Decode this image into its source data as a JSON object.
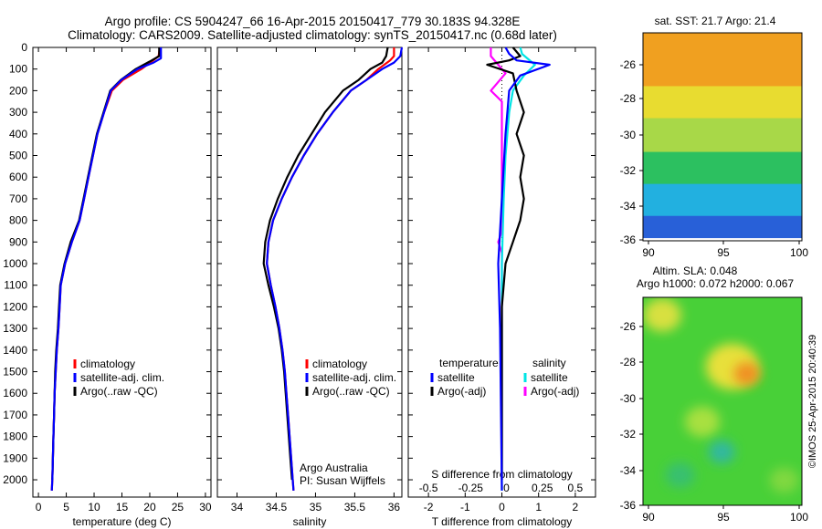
{
  "header": {
    "title1": "Argo profile: CS 5904247_66 16-Apr-2015 20150417_779 30.183S 94.328E",
    "title2": "Climatology: CARS2009. Satellite-adjusted climatology: synTS_20150417.nc (0.68d later)"
  },
  "depth_ticks": [
    "0",
    "100",
    "200",
    "300",
    "400",
    "500",
    "600",
    "700",
    "800",
    "900",
    "1000",
    "1100",
    "1200",
    "1300",
    "1400",
    "1500",
    "1600",
    "1700",
    "1800",
    "1900",
    "2000"
  ],
  "colors": {
    "climatology": "#ff0000",
    "satellite": "#0000ff",
    "argo": "#000000",
    "s_satellite": "#00e5e5",
    "s_argo": "#ff00ff"
  },
  "chart_data": [
    {
      "id": "temperature",
      "type": "line",
      "xlabel": "temperature (deg C)",
      "xlim": [
        -1,
        31
      ],
      "ylim": [
        2080,
        0
      ],
      "xticks": [
        0,
        5,
        10,
        15,
        20,
        25,
        30
      ],
      "legend": [
        "climatology",
        "satellite-adj. clim.",
        "Argo(..raw -QC)"
      ],
      "series": [
        {
          "name": "climatology",
          "color": "#ff0000",
          "points": [
            [
              21.8,
              0
            ],
            [
              21.6,
              40
            ],
            [
              20.6,
              60
            ],
            [
              18.5,
              100
            ],
            [
              15.2,
              150
            ],
            [
              13.2,
              200
            ],
            [
              11.8,
              300
            ],
            [
              10.6,
              400
            ],
            [
              9.8,
              500
            ],
            [
              9.0,
              600
            ],
            [
              8.2,
              700
            ],
            [
              7.4,
              800
            ],
            [
              6.0,
              900
            ],
            [
              4.8,
              1000
            ],
            [
              4.0,
              1100
            ],
            [
              3.8,
              1200
            ],
            [
              3.6,
              1300
            ],
            [
              3.3,
              1400
            ],
            [
              3.1,
              1500
            ],
            [
              2.9,
              1600
            ],
            [
              2.8,
              1700
            ],
            [
              2.7,
              1800
            ],
            [
              2.6,
              1900
            ],
            [
              2.5,
              2000
            ],
            [
              2.4,
              2050
            ]
          ]
        },
        {
          "name": "Argo(..raw -QC)",
          "color": "#000000",
          "points": [
            [
              21.7,
              0
            ],
            [
              21.7,
              40
            ],
            [
              20.0,
              65
            ],
            [
              17.5,
              100
            ],
            [
              14.8,
              150
            ],
            [
              12.9,
              200
            ],
            [
              11.7,
              300
            ],
            [
              10.5,
              400
            ],
            [
              9.7,
              500
            ],
            [
              8.9,
              600
            ],
            [
              8.1,
              700
            ],
            [
              7.3,
              800
            ],
            [
              5.8,
              900
            ],
            [
              4.7,
              1000
            ],
            [
              3.9,
              1100
            ],
            [
              3.7,
              1200
            ],
            [
              3.5,
              1300
            ],
            [
              3.2,
              1400
            ],
            [
              3.0,
              1500
            ],
            [
              2.9,
              1600
            ],
            [
              2.8,
              1700
            ],
            [
              2.7,
              1800
            ],
            [
              2.6,
              1900
            ],
            [
              2.5,
              2000
            ]
          ]
        },
        {
          "name": "satellite-adj. clim.",
          "color": "#0000ff",
          "points": [
            [
              22.0,
              0
            ],
            [
              22.0,
              50
            ],
            [
              20.7,
              70
            ],
            [
              17.8,
              100
            ],
            [
              14.9,
              150
            ],
            [
              13.0,
              200
            ],
            [
              11.8,
              300
            ],
            [
              10.6,
              400
            ],
            [
              9.8,
              500
            ],
            [
              9.0,
              600
            ],
            [
              8.2,
              700
            ],
            [
              7.4,
              800
            ],
            [
              6.0,
              900
            ],
            [
              4.8,
              1000
            ],
            [
              4.0,
              1100
            ],
            [
              3.8,
              1200
            ],
            [
              3.6,
              1300
            ],
            [
              3.3,
              1400
            ],
            [
              3.1,
              1500
            ],
            [
              2.9,
              1600
            ],
            [
              2.8,
              1700
            ],
            [
              2.7,
              1800
            ],
            [
              2.6,
              1900
            ],
            [
              2.5,
              2000
            ],
            [
              2.4,
              2050
            ]
          ]
        }
      ]
    },
    {
      "id": "salinity",
      "type": "line",
      "xlabel": "salinity",
      "xlim": [
        33.75,
        36.1
      ],
      "ylim": [
        2080,
        0
      ],
      "xticks": [
        34,
        34.5,
        35,
        35.5,
        36
      ],
      "legend": [
        "climatology",
        "satellite-adj. clim.",
        "Argo(..raw -QC)"
      ],
      "annotation": [
        "Argo Australia",
        "PI: Susan Wijffels"
      ],
      "series": [
        {
          "name": "climatology",
          "color": "#ff0000",
          "points": [
            [
              36.0,
              0
            ],
            [
              36.0,
              40
            ],
            [
              35.95,
              60
            ],
            [
              35.8,
              100
            ],
            [
              35.65,
              150
            ],
            [
              35.45,
              200
            ],
            [
              35.22,
              300
            ],
            [
              35.02,
              400
            ],
            [
              34.85,
              500
            ],
            [
              34.7,
              600
            ],
            [
              34.57,
              700
            ],
            [
              34.46,
              800
            ],
            [
              34.4,
              900
            ],
            [
              34.38,
              1000
            ],
            [
              34.43,
              1100
            ],
            [
              34.49,
              1200
            ],
            [
              34.54,
              1300
            ],
            [
              34.58,
              1400
            ],
            [
              34.61,
              1500
            ],
            [
              34.63,
              1600
            ],
            [
              34.65,
              1700
            ],
            [
              34.67,
              1800
            ],
            [
              34.69,
              1900
            ],
            [
              34.71,
              2000
            ],
            [
              34.72,
              2050
            ]
          ]
        },
        {
          "name": "Argo(..raw -QC)",
          "color": "#000000",
          "points": [
            [
              35.92,
              0
            ],
            [
              35.9,
              40
            ],
            [
              35.85,
              70
            ],
            [
              35.7,
              100
            ],
            [
              35.55,
              150
            ],
            [
              35.35,
              200
            ],
            [
              35.12,
              300
            ],
            [
              34.95,
              400
            ],
            [
              34.78,
              500
            ],
            [
              34.64,
              600
            ],
            [
              34.52,
              700
            ],
            [
              34.42,
              800
            ],
            [
              34.36,
              900
            ],
            [
              34.34,
              1000
            ],
            [
              34.4,
              1100
            ],
            [
              34.47,
              1200
            ],
            [
              34.53,
              1300
            ],
            [
              34.57,
              1400
            ],
            [
              34.6,
              1500
            ],
            [
              34.62,
              1600
            ],
            [
              34.64,
              1700
            ],
            [
              34.66,
              1800
            ],
            [
              34.68,
              1900
            ],
            [
              34.7,
              2000
            ]
          ]
        },
        {
          "name": "satellite-adj. clim.",
          "color": "#0000ff",
          "points": [
            [
              36.1,
              0
            ],
            [
              36.08,
              40
            ],
            [
              36.0,
              70
            ],
            [
              35.85,
              100
            ],
            [
              35.65,
              150
            ],
            [
              35.45,
              200
            ],
            [
              35.22,
              300
            ],
            [
              35.02,
              400
            ],
            [
              34.85,
              500
            ],
            [
              34.7,
              600
            ],
            [
              34.57,
              700
            ],
            [
              34.46,
              800
            ],
            [
              34.4,
              900
            ],
            [
              34.38,
              1000
            ],
            [
              34.43,
              1100
            ],
            [
              34.49,
              1200
            ],
            [
              34.54,
              1300
            ],
            [
              34.58,
              1400
            ],
            [
              34.61,
              1500
            ],
            [
              34.63,
              1600
            ],
            [
              34.65,
              1700
            ],
            [
              34.67,
              1800
            ],
            [
              34.69,
              1900
            ],
            [
              34.71,
              2000
            ],
            [
              34.72,
              2050
            ]
          ]
        }
      ]
    },
    {
      "id": "difference",
      "type": "line",
      "xlabel": "T difference from climatology",
      "xlabel_top": "S difference from climatology",
      "xlim": [
        -2.55,
        2.55
      ],
      "ylim": [
        2080,
        0
      ],
      "xticks": [
        -2,
        -1,
        0,
        1,
        2
      ],
      "xtick_labels_top": [
        "-0.5",
        "-0.25",
        "0",
        "0.25",
        "0.5"
      ],
      "legend_headers": [
        "temperature",
        "salinity"
      ],
      "legend": [
        "satellite",
        "Argo(-adj)",
        "satellite",
        "Argo(-adj)"
      ],
      "series": [
        {
          "name": "Argo(-adj)",
          "group": "salinity",
          "color": "#ff00ff",
          "points": [
            [
              -0.3,
              0
            ],
            [
              -0.3,
              40
            ],
            [
              -0.1,
              80
            ],
            [
              0.1,
              120
            ],
            [
              -0.3,
              200
            ],
            [
              0,
              250
            ],
            [
              0,
              300
            ],
            [
              0,
              850
            ],
            [
              -0.1,
              900
            ],
            [
              0,
              950
            ],
            [
              0,
              2000
            ]
          ]
        },
        {
          "name": "satellite",
          "group": "salinity",
          "color": "#00e5e5",
          "points": [
            [
              0.5,
              0
            ],
            [
              0.55,
              30
            ],
            [
              0.9,
              80
            ],
            [
              0.6,
              130
            ],
            [
              0.3,
              200
            ],
            [
              0.2,
              300
            ],
            [
              0.1,
              500
            ],
            [
              0.05,
              700
            ],
            [
              0,
              1000
            ],
            [
              0,
              2050
            ]
          ]
        },
        {
          "name": "Argo(-adj)",
          "group": "temperature",
          "color": "#000000",
          "points": [
            [
              0.3,
              0
            ],
            [
              0.5,
              40
            ],
            [
              0.2,
              60
            ],
            [
              -0.4,
              80
            ],
            [
              0.3,
              120
            ],
            [
              0.4,
              200
            ],
            [
              0.6,
              300
            ],
            [
              0.5,
              350
            ],
            [
              0.4,
              400
            ],
            [
              0.6,
              500
            ],
            [
              0.5,
              600
            ],
            [
              0.6,
              700
            ],
            [
              0.5,
              800
            ],
            [
              0.3,
              900
            ],
            [
              0.1,
              1000
            ],
            [
              0,
              1200
            ],
            [
              0,
              2000
            ]
          ]
        },
        {
          "name": "satellite",
          "group": "temperature",
          "color": "#0000ff",
          "points": [
            [
              0.1,
              0
            ],
            [
              0.2,
              30
            ],
            [
              0.4,
              60
            ],
            [
              1.3,
              80
            ],
            [
              0.5,
              130
            ],
            [
              0.2,
              200
            ],
            [
              0.1,
              400
            ],
            [
              0,
              700
            ],
            [
              -0.1,
              1000
            ],
            [
              -0.05,
              1300
            ],
            [
              0,
              2050
            ]
          ]
        }
      ]
    }
  ],
  "maps": [
    {
      "title": "sat. SST: 21.7 Argo: 21.4",
      "type": "heatmap",
      "lon_ticks": [
        "90",
        "95",
        "100"
      ],
      "lat_ticks": [
        "-26",
        "-28",
        "-30",
        "-32",
        "-34",
        "-36"
      ],
      "color_bands": [
        {
          "lat_from": -24.5,
          "lat_to": -27.5,
          "color": "#f0a020"
        },
        {
          "lat_from": -27.5,
          "lat_to": -29.3,
          "color": "#e8dc30"
        },
        {
          "lat_from": -29.3,
          "lat_to": -31.2,
          "color": "#a8d848"
        },
        {
          "lat_from": -31.2,
          "lat_to": -33.0,
          "color": "#2cc060"
        },
        {
          "lat_from": -33.0,
          "lat_to": -34.8,
          "color": "#22b0e0"
        },
        {
          "lat_from": -34.8,
          "lat_to": -36.0,
          "color": "#2860d8"
        }
      ],
      "argo_point": [
        94.3,
        -30.2
      ]
    },
    {
      "title": "Altim. SLA: 0.048",
      "subtitle": "Argo h1000: 0.072 h2000: 0.067",
      "type": "heatmap",
      "lon_ticks": [
        "90",
        "95",
        "100"
      ],
      "lat_ticks": [
        "-26",
        "-28",
        "-30",
        "-32",
        "-34",
        "-36"
      ],
      "base_color": "#48d038",
      "blobs": [
        {
          "lon": 90.8,
          "lat": -25.5,
          "r": 1.3,
          "color": "#d8e040"
        },
        {
          "lon": 95.5,
          "lat": -28.4,
          "r": 1.8,
          "color": "#e8e03a"
        },
        {
          "lon": 96.5,
          "lat": -28.8,
          "r": 0.9,
          "color": "#f09020"
        },
        {
          "lon": 93.5,
          "lat": -31.5,
          "r": 1.2,
          "color": "#a8e040"
        },
        {
          "lon": 94.8,
          "lat": -33.2,
          "r": 0.9,
          "color": "#30b8a0"
        },
        {
          "lon": 92.0,
          "lat": -34.5,
          "r": 1.0,
          "color": "#38c070"
        },
        {
          "lon": 99.0,
          "lat": -34.8,
          "r": 1.0,
          "color": "#80d840"
        }
      ]
    }
  ],
  "credit": "©IMOS 25-Apr-2015 20:40:39"
}
